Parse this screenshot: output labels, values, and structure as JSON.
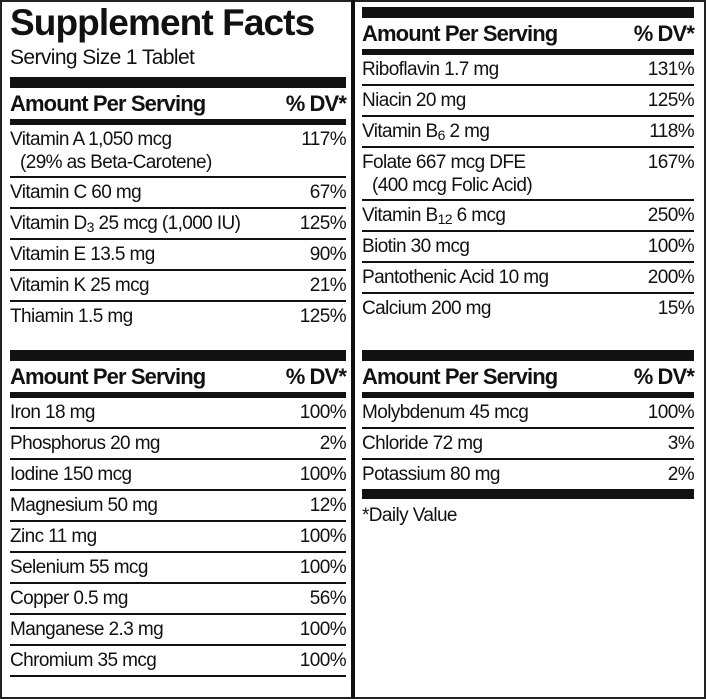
{
  "title": "Supplement Facts",
  "serving_size": "Serving Size 1 Tablet",
  "header": {
    "amount": "Amount Per Serving",
    "dv": "% DV*"
  },
  "footnote": "*Daily Value",
  "sections": [
    {
      "column": "left",
      "rows": [
        {
          "name": "Vitamin A 1,050 mcg",
          "note": "(29% as Beta-Carotene)",
          "dv": "117%"
        },
        {
          "name": "Vitamin C 60 mg",
          "dv": "67%"
        },
        {
          "name": "Vitamin D",
          "sub": "3",
          "post": " 25 mcg (1,000 IU)",
          "dv": "125%"
        },
        {
          "name": "Vitamin E 13.5 mg",
          "dv": "90%"
        },
        {
          "name": "Vitamin K 25 mcg",
          "dv": "21%"
        },
        {
          "name": "Thiamin 1.5 mg",
          "dv": "125%"
        }
      ]
    },
    {
      "column": "left",
      "rows": [
        {
          "name": "Iron 18 mg",
          "dv": "100%"
        },
        {
          "name": "Phosphorus 20 mg",
          "dv": "2%"
        },
        {
          "name": "Iodine 150 mcg",
          "dv": "100%"
        },
        {
          "name": "Magnesium 50 mg",
          "dv": "12%"
        },
        {
          "name": "Zinc 11 mg",
          "dv": "100%"
        },
        {
          "name": "Selenium 55 mcg",
          "dv": "100%"
        },
        {
          "name": "Copper 0.5 mg",
          "dv": "56%"
        },
        {
          "name": "Manganese 2.3 mg",
          "dv": "100%"
        },
        {
          "name": "Chromium 35 mcg",
          "dv": "100%"
        }
      ]
    },
    {
      "column": "right",
      "rows": [
        {
          "name": "Riboflavin 1.7 mg",
          "dv": "131%"
        },
        {
          "name": "Niacin 20 mg",
          "dv": "125%"
        },
        {
          "name": "Vitamin B",
          "sub": "6",
          "post": " 2 mg",
          "dv": "118%"
        },
        {
          "name": "Folate 667 mcg DFE",
          "note": "(400 mcg Folic Acid)",
          "dv": "167%"
        },
        {
          "name": "Vitamin B",
          "sub": "12",
          "post": " 6 mcg",
          "dv": "250%"
        },
        {
          "name": "Biotin 30 mcg",
          "dv": "100%"
        },
        {
          "name": "Pantothenic Acid 10 mg",
          "dv": "200%"
        },
        {
          "name": "Calcium 200 mg",
          "dv": "15%"
        }
      ]
    },
    {
      "column": "right",
      "rows": [
        {
          "name": "Molybdenum 45 mcg",
          "dv": "100%"
        },
        {
          "name": "Chloride 72 mg",
          "dv": "3%"
        },
        {
          "name": "Potassium 80 mg",
          "dv": "2%"
        }
      ]
    }
  ]
}
